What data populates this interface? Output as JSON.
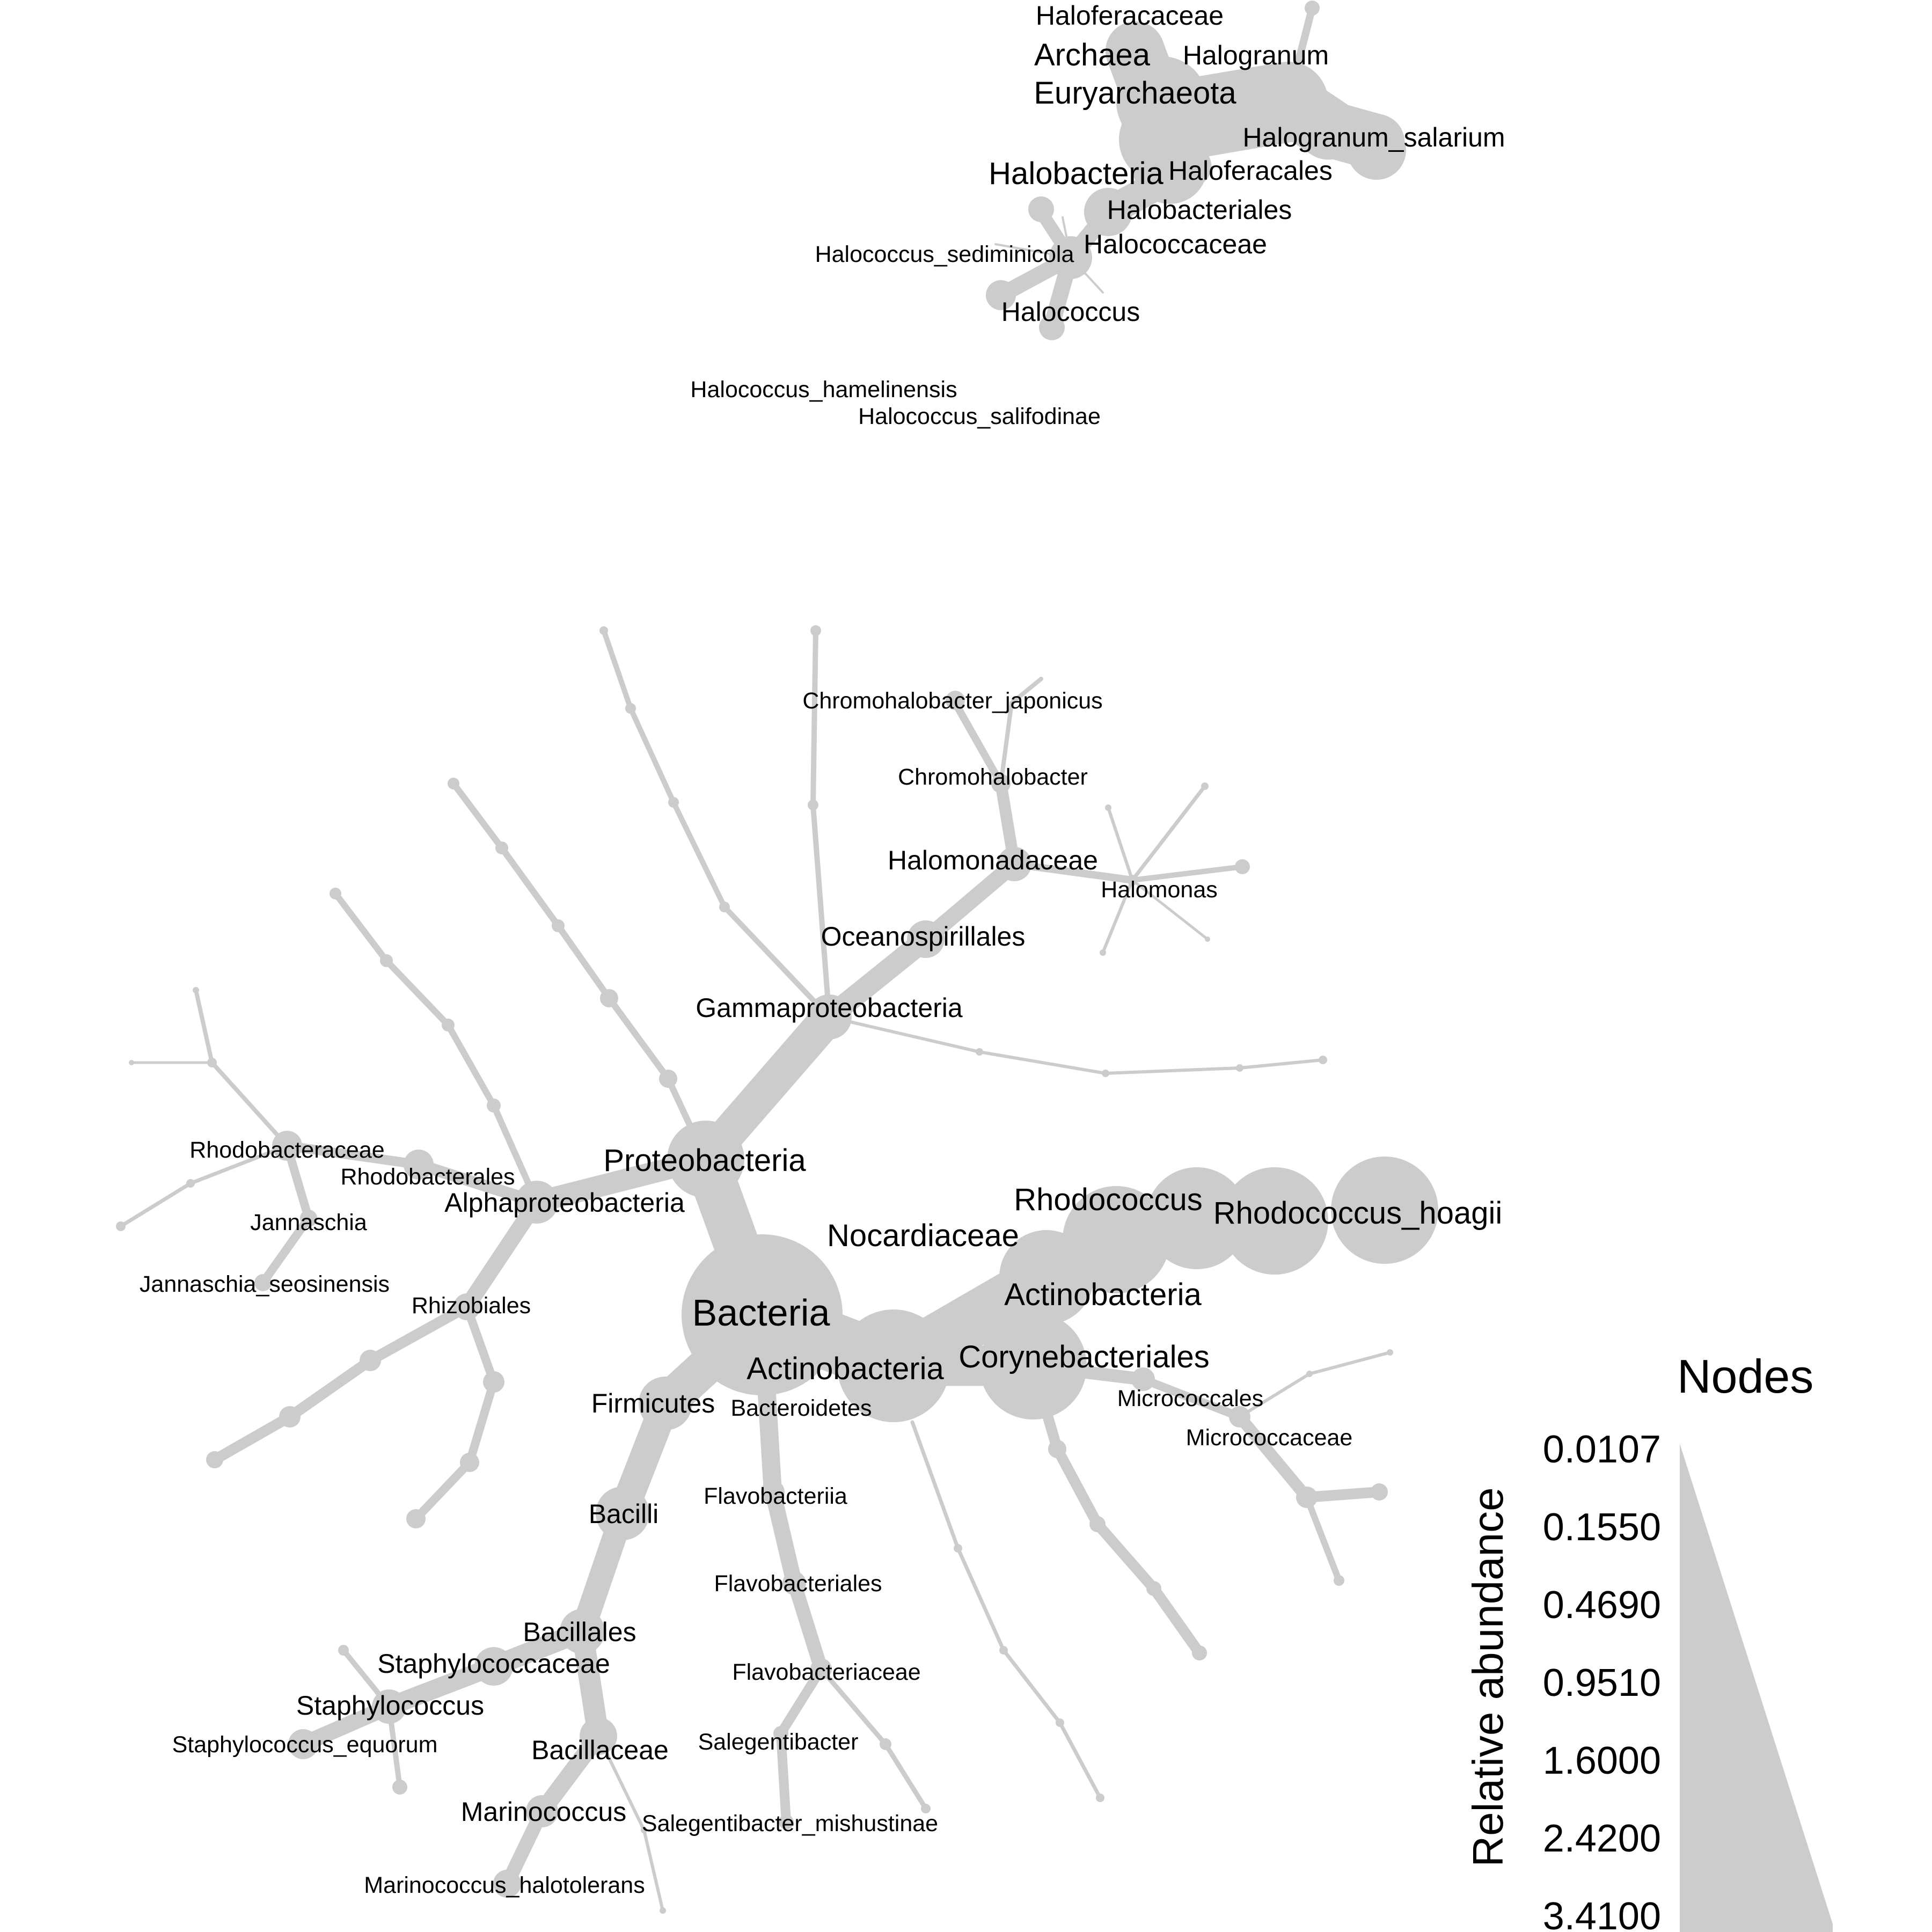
{
  "diagram": {
    "labels": [
      {
        "id": "haloferacaceae",
        "text": "Haloferacaceae"
      },
      {
        "id": "archaea",
        "text": "Archaea"
      },
      {
        "id": "halogranum",
        "text": "Halogranum"
      },
      {
        "id": "euryarchaeota",
        "text": "Euryarchaeota"
      },
      {
        "id": "halogranum_salarium",
        "text": "Halogranum_salarium"
      },
      {
        "id": "halobacteria",
        "text": "Halobacteria"
      },
      {
        "id": "haloferacales",
        "text": "Haloferacales"
      },
      {
        "id": "halobacteriales",
        "text": "Halobacteriales"
      },
      {
        "id": "halococcus_sediminicola",
        "text": "Halococcus_sediminicola"
      },
      {
        "id": "halococcaceae",
        "text": "Halococcaceae"
      },
      {
        "id": "halococcus",
        "text": "Halococcus"
      },
      {
        "id": "halococcus_hamelinensis",
        "text": "Halococcus_hamelinensis"
      },
      {
        "id": "halococcus_salifodinae",
        "text": "Halococcus_salifodinae"
      },
      {
        "id": "chromohalobacter_japonicus",
        "text": "Chromohalobacter_japonicus"
      },
      {
        "id": "chromohalobacter",
        "text": "Chromohalobacter"
      },
      {
        "id": "halomonadaceae",
        "text": "Halomonadaceae"
      },
      {
        "id": "halomonas",
        "text": "Halomonas"
      },
      {
        "id": "oceanospirillales",
        "text": "Oceanospirillales"
      },
      {
        "id": "gammaproteobacteria",
        "text": "Gammaproteobacteria"
      },
      {
        "id": "rhodobacteraceae",
        "text": "Rhodobacteraceae"
      },
      {
        "id": "rhodobacterales",
        "text": "Rhodobacterales"
      },
      {
        "id": "proteobacteria",
        "text": "Proteobacteria"
      },
      {
        "id": "alphaproteobacteria",
        "text": "Alphaproteobacteria"
      },
      {
        "id": "jannaschia",
        "text": "Jannaschia"
      },
      {
        "id": "rhodococcus",
        "text": "Rhodococcus"
      },
      {
        "id": "rhodococcus_hoagii",
        "text": "Rhodococcus_hoagii"
      },
      {
        "id": "nocardiaceae",
        "text": "Nocardiaceae"
      },
      {
        "id": "jannaschia_seosinensis",
        "text": "Jannaschia_seosinensis"
      },
      {
        "id": "rhizobiales",
        "text": "Rhizobiales"
      },
      {
        "id": "actinobacteria_class",
        "text": "Actinobacteria"
      },
      {
        "id": "bacteria",
        "text": "Bacteria"
      },
      {
        "id": "corynebacteriales",
        "text": "Corynebacteriales"
      },
      {
        "id": "actinobacteria_phylum",
        "text": "Actinobacteria"
      },
      {
        "id": "micrococcales",
        "text": "Micrococcales"
      },
      {
        "id": "firmicutes",
        "text": "Firmicutes"
      },
      {
        "id": "bacteroidetes",
        "text": "Bacteroidetes"
      },
      {
        "id": "micrococcaceae",
        "text": "Micrococcaceae"
      },
      {
        "id": "flavobacteriia",
        "text": "Flavobacteriia"
      },
      {
        "id": "bacilli",
        "text": "Bacilli"
      },
      {
        "id": "flavobacteriales",
        "text": "Flavobacteriales"
      },
      {
        "id": "bacillales",
        "text": "Bacillales"
      },
      {
        "id": "staphylococcaceae",
        "text": "Staphylococcaceae"
      },
      {
        "id": "flavobacteriaceae",
        "text": "Flavobacteriaceae"
      },
      {
        "id": "staphylococcus",
        "text": "Staphylococcus"
      },
      {
        "id": "salegentibacter",
        "text": "Salegentibacter"
      },
      {
        "id": "staphylococcus_equorum",
        "text": "Staphylococcus_equorum"
      },
      {
        "id": "bacillaceae",
        "text": "Bacillaceae"
      },
      {
        "id": "marinococcus",
        "text": "Marinococcus"
      },
      {
        "id": "salegentibacter_mishustinae",
        "text": "Salegentibacter_mishustinae"
      },
      {
        "id": "marinococcus_halotolerans",
        "text": "Marinococcus_halotolerans"
      }
    ]
  },
  "legend": {
    "title": "Nodes",
    "axis_label": "Relative abundance",
    "ticks": [
      "0.0107",
      "0.1550",
      "0.4690",
      "0.9510",
      "1.6000",
      "2.4200",
      "3.4100"
    ]
  },
  "colors": {
    "node": "#cccccc",
    "text": "#000000",
    "background": "#ffffff"
  }
}
